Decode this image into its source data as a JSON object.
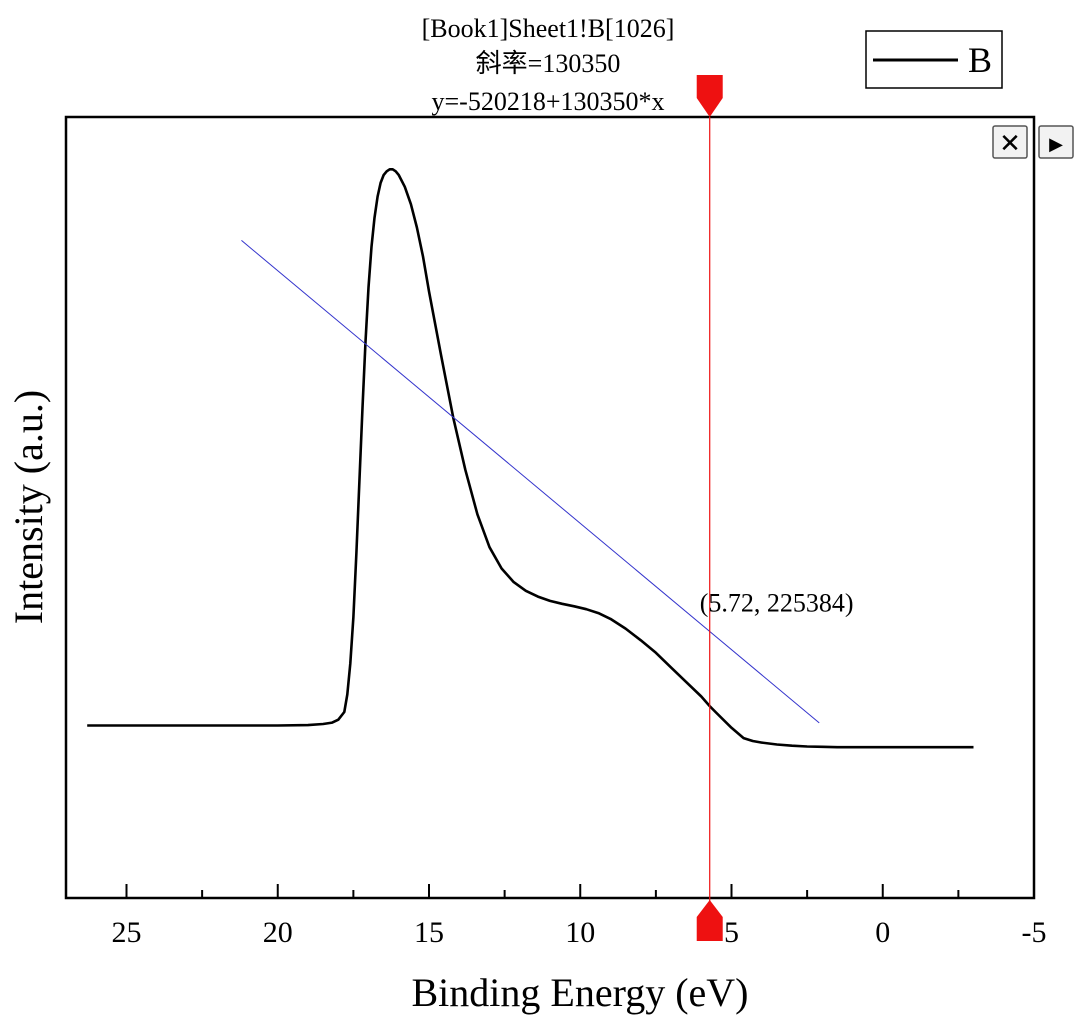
{
  "chart_data": {
    "type": "line",
    "title": "",
    "xlabel": "Binding Energy (eV)",
    "ylabel": "Intensity (a.u.)",
    "xlim": [
      27,
      -5
    ],
    "x_reversed": true,
    "ylim": [
      -1150000,
      2880000
    ],
    "y_ticks_shown": false,
    "x_ticks": [
      25,
      20,
      15,
      10,
      5,
      0,
      -5
    ],
    "x_tick_labels": [
      "25",
      "20",
      "15",
      "10",
      "5",
      "0",
      "-5"
    ],
    "legend": {
      "position": "top-right",
      "entries": [
        {
          "name": "B"
        }
      ]
    },
    "series": [
      {
        "name": "B",
        "color": "#000000",
        "x": [
          26.3,
          24.0,
          22.0,
          20.0,
          19.0,
          18.5,
          18.2,
          18.0,
          17.8,
          17.7,
          17.6,
          17.5,
          17.4,
          17.3,
          17.2,
          17.1,
          17.0,
          16.9,
          16.8,
          16.7,
          16.6,
          16.5,
          16.4,
          16.3,
          16.2,
          16.1,
          16.0,
          15.8,
          15.6,
          15.4,
          15.2,
          15.0,
          14.6,
          14.2,
          13.8,
          13.4,
          13.0,
          12.6,
          12.2,
          11.8,
          11.4,
          11.0,
          10.6,
          10.2,
          9.8,
          9.4,
          9.0,
          8.5,
          8.0,
          7.5,
          7.0,
          6.5,
          6.0,
          5.72,
          5.5,
          5.0,
          4.6,
          4.3,
          4.0,
          3.5,
          3.0,
          2.5,
          2.0,
          1.5,
          1.0,
          0.0,
          -1.0,
          -2.0,
          -3.0
        ],
        "y": [
          -260000,
          -260000,
          -260000,
          -260000,
          -258000,
          -252000,
          -245000,
          -230000,
          -190000,
          -100000,
          60000,
          300000,
          630000,
          1000000,
          1380000,
          1720000,
          2000000,
          2210000,
          2360000,
          2470000,
          2540000,
          2580000,
          2600000,
          2610000,
          2610000,
          2600000,
          2580000,
          2520000,
          2430000,
          2310000,
          2160000,
          1980000,
          1650000,
          1330000,
          1060000,
          830000,
          660000,
          550000,
          480000,
          435000,
          405000,
          383000,
          368000,
          355000,
          340000,
          320000,
          290000,
          240000,
          180000,
          115000,
          40000,
          -35000,
          -110000,
          -160000,
          -195000,
          -272000,
          -325000,
          -340000,
          -348000,
          -358000,
          -364000,
          -368000,
          -370000,
          -372000,
          -372000,
          -372000,
          -372000,
          -372000,
          -372000
        ]
      },
      {
        "name": "Tangent",
        "color": "#3333cc",
        "style": "tangent-line",
        "equation": "y=-520218+130350*x",
        "slope": 130350,
        "intercept": -520218,
        "x_range": [
          21.2,
          2.1
        ]
      }
    ],
    "cursor": {
      "x": 5.72,
      "y": 225384,
      "color": "#ee1111",
      "point_label": "(5.72, 225384)"
    },
    "annotations": {
      "source": "[Book1]Sheet1!B[1026]",
      "slope_label": "斜率=130350",
      "equation_label": "y=-520218+130350*x"
    }
  },
  "controls": {
    "close_glyph": "✕",
    "next_glyph": "▶"
  }
}
